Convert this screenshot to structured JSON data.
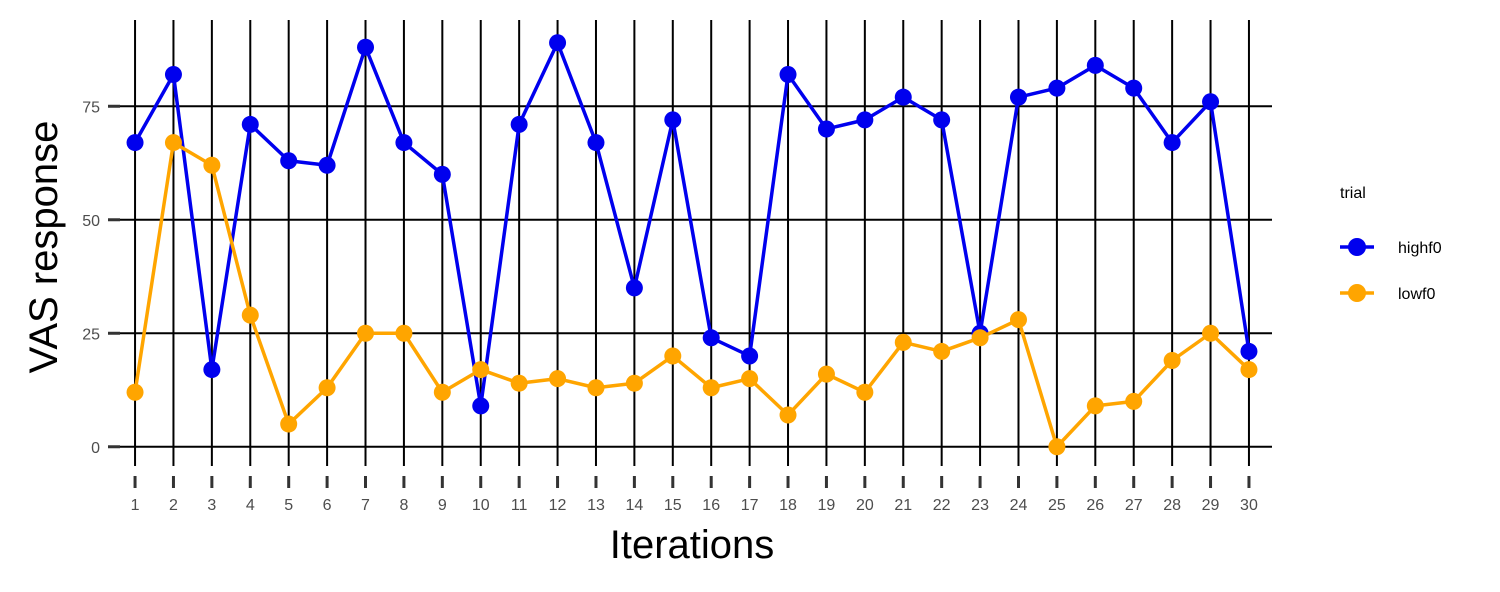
{
  "chart_data": {
    "type": "line",
    "title": "",
    "xlabel": "Iterations",
    "ylabel": "VAS response",
    "x": [
      1,
      2,
      3,
      4,
      5,
      6,
      7,
      8,
      9,
      10,
      11,
      12,
      13,
      14,
      15,
      16,
      17,
      18,
      19,
      20,
      21,
      22,
      23,
      24,
      25,
      26,
      27,
      28,
      29,
      30
    ],
    "xticks": [
      "1",
      "2",
      "3",
      "4",
      "5",
      "6",
      "7",
      "8",
      "9",
      "10",
      "11",
      "12",
      "13",
      "14",
      "15",
      "16",
      "17",
      "18",
      "19",
      "20",
      "21",
      "22",
      "23",
      "24",
      "25",
      "26",
      "27",
      "28",
      "29",
      "30"
    ],
    "yticks": [
      0,
      25,
      50,
      75
    ],
    "ylim": [
      -6,
      94
    ],
    "grid": true,
    "legend": {
      "title": "trial",
      "position": "right"
    },
    "series": [
      {
        "name": "highf0",
        "color": "#0000EE",
        "values": [
          67,
          82,
          17,
          71,
          63,
          62,
          88,
          67,
          60,
          9,
          71,
          89,
          67,
          35,
          72,
          24,
          20,
          82,
          70,
          72,
          77,
          72,
          25,
          77,
          79,
          84,
          79,
          67,
          76,
          21
        ]
      },
      {
        "name": "lowf0",
        "color": "#FFA500",
        "values": [
          12,
          67,
          62,
          29,
          5,
          13,
          25,
          25,
          12,
          17,
          14,
          15,
          13,
          14,
          20,
          13,
          15,
          7,
          16,
          12,
          23,
          21,
          24,
          28,
          0,
          9,
          10,
          19,
          25,
          17
        ]
      }
    ]
  }
}
